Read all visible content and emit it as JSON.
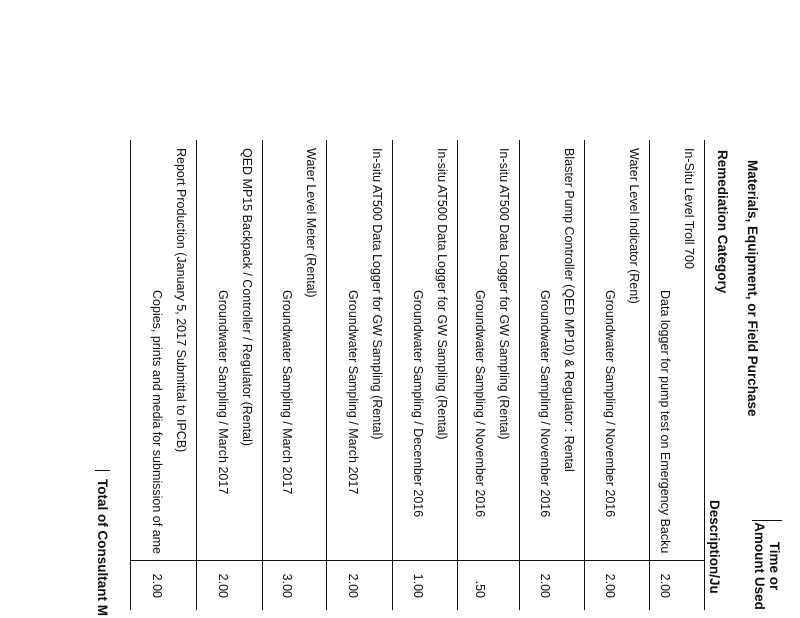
{
  "header": {
    "materials": "Materials, Equipment, or Field Purchase",
    "category": "Remediation Category",
    "time_amount_line1": "Time or",
    "time_amount_line2": "Amount Used",
    "description": "Description/Ju"
  },
  "rows": [
    {
      "item": "In-Situ Level Troll 700",
      "description": "Data logger for pump test on Emergency Backu",
      "amount": "2.00"
    },
    {
      "item": "Water Level Indicator (Rent)",
      "description": "Groundwater Sampling / November 2016",
      "amount": "2.00"
    },
    {
      "item": "Blaster Pump Controller (QED MP10) & Regulator : Rental",
      "description": "Groundwater Sampling / November 2016",
      "amount": "2.00"
    },
    {
      "item": "In-situ AT500 Data Logger for GW Sampling (Rental)",
      "description": "Groundwater Sampling / November 2016",
      "amount": ".50"
    },
    {
      "item": "In-situ AT500 Data Logger for GW Sampling (Rental)",
      "description": "Groundwater Sampling / December 2016",
      "amount": "1.00"
    },
    {
      "item": "In-situ AT500 Data Logger for GW Sampling (Rental)",
      "description": "Groundwater Sampling / March 2017",
      "amount": "2.00"
    },
    {
      "item": "Water Level Meter (Rental)",
      "description": "Groundwater Sampling / March 2017",
      "amount": "3.00"
    },
    {
      "item": "QED MP15 Backpack / Controller / Regulator (Rental)",
      "description": "Groundwater Sampling / March 2017",
      "amount": "2.00"
    },
    {
      "item": "Report Production (January 5, 2017 Submittal to IPCB)",
      "description": "Copies, prints and media for submission of ame",
      "amount": "2.00"
    }
  ],
  "total_label": "Total of Consultant M"
}
